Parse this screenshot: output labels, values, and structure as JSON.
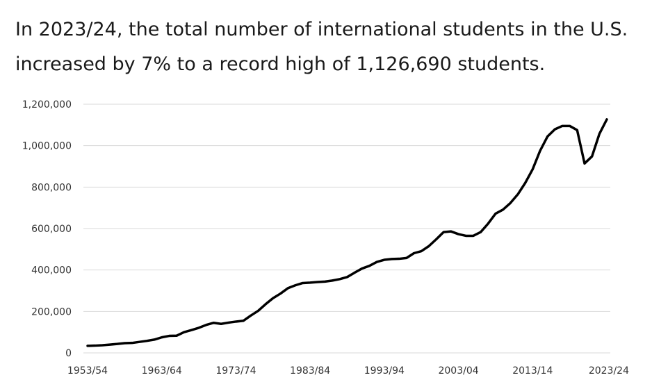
{
  "title": "In 2023/24, the total number of international students in the U.S. increased by 7% to a record high of 1,126,690 students.",
  "colors": {
    "line": "#000000",
    "grid": "#d9d9d9",
    "text": "#333333"
  },
  "chart_data": {
    "type": "line",
    "title": "In 2023/24, the total number of international students in the U.S. increased by 7% to a record high of 1,126,690 students.",
    "xlabel": "",
    "ylabel": "",
    "ylim": [
      0,
      1200000
    ],
    "yticks": [
      0,
      200000,
      400000,
      600000,
      800000,
      1000000,
      1200000
    ],
    "ytick_labels": [
      "0",
      "200,000",
      "400,000",
      "600,000",
      "800,000",
      "1,000,000",
      "1,200,000"
    ],
    "xtick_labels": [
      "1953/54",
      "1963/64",
      "1973/74",
      "1983/84",
      "1993/94",
      "2003/04",
      "2013/14",
      "2023/24"
    ],
    "grid": true,
    "legend": "none",
    "series": [
      {
        "values": [
          34000,
          35000,
          37000,
          40000,
          43000,
          47000,
          48000,
          53000,
          58000,
          64000,
          75000,
          82000,
          83000,
          100000,
          110000,
          121000,
          135000,
          145000,
          140000,
          146000,
          151000,
          155000,
          180000,
          203000,
          235000,
          264000,
          286000,
          312000,
          326000,
          337000,
          339000,
          342000,
          344000,
          349000,
          356000,
          366000,
          387000,
          407000,
          420000,
          439000,
          449000,
          453000,
          454000,
          458000,
          481000,
          491000,
          515000,
          548000,
          583000,
          586000,
          573000,
          565000,
          565000,
          583000,
          624000,
          672000,
          691000,
          723000,
          765000,
          820000,
          886000,
          975000,
          1044000,
          1079000,
          1095000,
          1095000,
          1075000,
          914000,
          948000,
          1057000,
          1126690
        ]
      }
    ]
  }
}
